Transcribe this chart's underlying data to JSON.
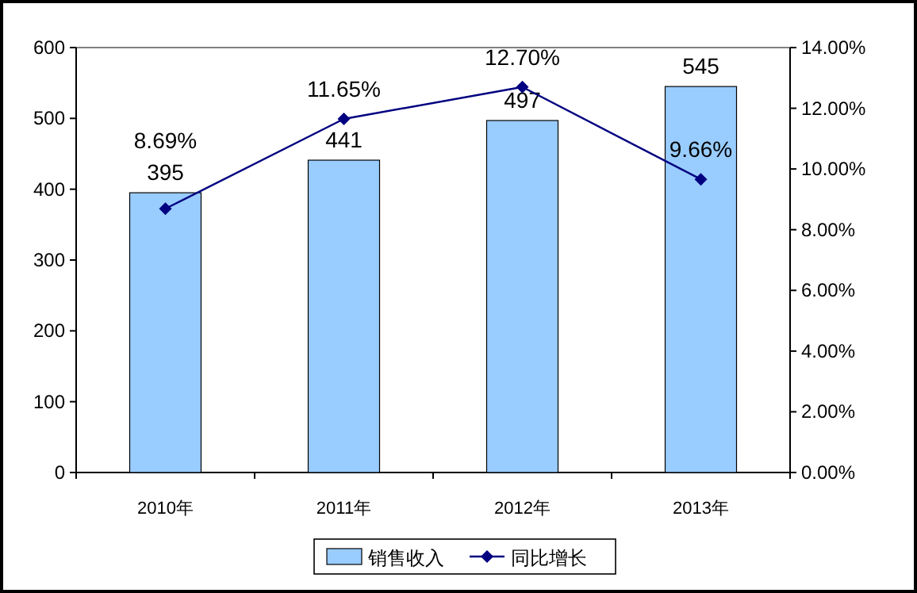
{
  "chart_data": {
    "type": "bar",
    "categories": [
      "2010年",
      "2011年",
      "2012年",
      "2013年"
    ],
    "series": [
      {
        "name": "销售收入",
        "color": "#99ccff",
        "values": [
          395,
          441,
          497,
          545
        ],
        "value_labels": [
          "395",
          "441",
          "497",
          "545"
        ]
      },
      {
        "name": "同比增长",
        "type": "line",
        "axis": "y2",
        "color": "#000080",
        "marker": "diamond",
        "values": [
          8.69,
          11.65,
          12.7,
          9.66
        ],
        "value_labels": [
          "8.69%",
          "11.65%",
          "12.70%",
          "9.66%"
        ]
      }
    ],
    "ylim": [
      0,
      600
    ],
    "yticks": [
      0,
      100,
      200,
      300,
      400,
      500,
      600
    ],
    "y2lim": [
      0,
      14
    ],
    "y2ticks": [
      {
        "value": 0,
        "label": "0.00%"
      },
      {
        "value": 2,
        "label": "2.00%"
      },
      {
        "value": 4,
        "label": "4.00%"
      },
      {
        "value": 6,
        "label": "6.00%"
      },
      {
        "value": 8,
        "label": "8.00%"
      },
      {
        "value": 10,
        "label": "10.00%"
      },
      {
        "value": 12,
        "label": "12.00%"
      },
      {
        "value": 14,
        "label": "14.00%"
      }
    ],
    "grid": false,
    "legend": "bottom"
  }
}
